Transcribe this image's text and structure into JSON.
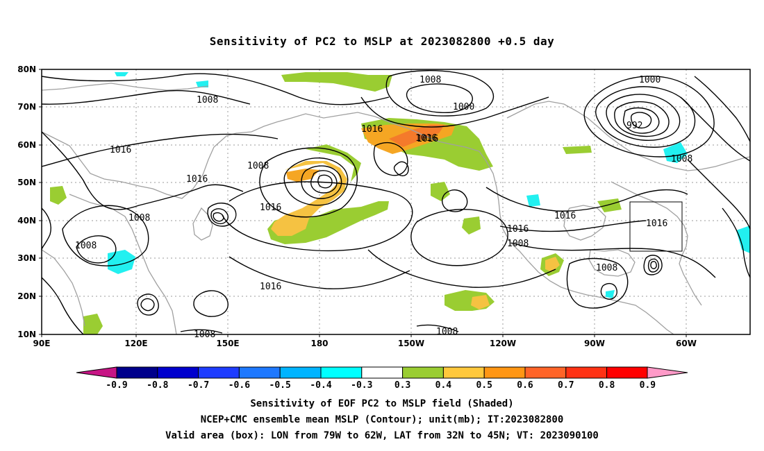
{
  "title": "Sensitivity of PC2 to MSLP at 2023082800 +0.5 day",
  "map": {
    "lat_labels": [
      "80N",
      "70N",
      "60N",
      "50N",
      "40N",
      "30N",
      "20N",
      "10N"
    ],
    "lon_labels": [
      "90E",
      "120E",
      "150E",
      "180",
      "150W",
      "120W",
      "90W",
      "60W"
    ],
    "contour_labels": [
      "1008",
      "1016",
      "1016",
      "1008",
      "1016",
      "1016",
      "1008",
      "1008",
      "1016",
      "1008",
      "1016",
      "1000",
      "1008",
      "1016",
      "992",
      "1000",
      "1008",
      "1016",
      "1016",
      "1016",
      "1008",
      "1008",
      "1008"
    ],
    "colors": {
      "contour": "#000000",
      "coastline": "#a0a0a0",
      "pos_0_3": "#9acd32",
      "pos_0_4": "#f5c242",
      "pos_0_5": "#f5a623",
      "pos_0_6": "#f47a2b",
      "neg_0_3": "#22f0f0"
    }
  },
  "colorbar": {
    "labels": [
      "-0.9",
      "-0.8",
      "-0.7",
      "-0.6",
      "-0.5",
      "-0.4",
      "-0.3",
      "0.3",
      "0.4",
      "0.5",
      "0.6",
      "0.7",
      "0.8",
      "0.9"
    ],
    "colors": [
      "#c71585",
      "#00008b",
      "#0000cd",
      "#1e3cff",
      "#1e78ff",
      "#00b4ff",
      "#00ffff",
      "#ffffff",
      "#9acd32",
      "#ffc83c",
      "#ff9614",
      "#ff6428",
      "#ff3214",
      "#ff0000",
      "#ff9ac8"
    ]
  },
  "captions": [
    "Sensitivity of EOF PC2 to MSLP field (Shaded)",
    "NCEP+CMC ensemble mean MSLP (Contour); unit(mb); IT:2023082800",
    "Valid area (box): LON from 79W to 62W, LAT from 32N to 45N; VT: 2023090100"
  ]
}
